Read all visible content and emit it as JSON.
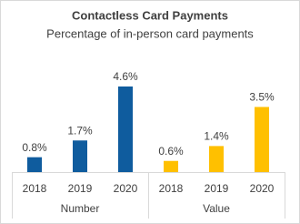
{
  "chart_data": {
    "type": "bar",
    "title": "Contactless Card Payments",
    "subtitle": "Percentage of in-person card payments",
    "groups": [
      {
        "name": "Number",
        "color": "#0f5c9e",
        "categories": [
          "2018",
          "2019",
          "2020"
        ],
        "values": [
          0.8,
          1.7,
          4.6
        ],
        "value_labels": [
          "0.8%",
          "1.7%",
          "4.6%"
        ]
      },
      {
        "name": "Value",
        "color": "#ffc000",
        "categories": [
          "2018",
          "2019",
          "2020"
        ],
        "values": [
          0.6,
          1.4,
          3.5
        ],
        "value_labels": [
          "0.6%",
          "1.4%",
          "3.5%"
        ]
      }
    ]
  }
}
